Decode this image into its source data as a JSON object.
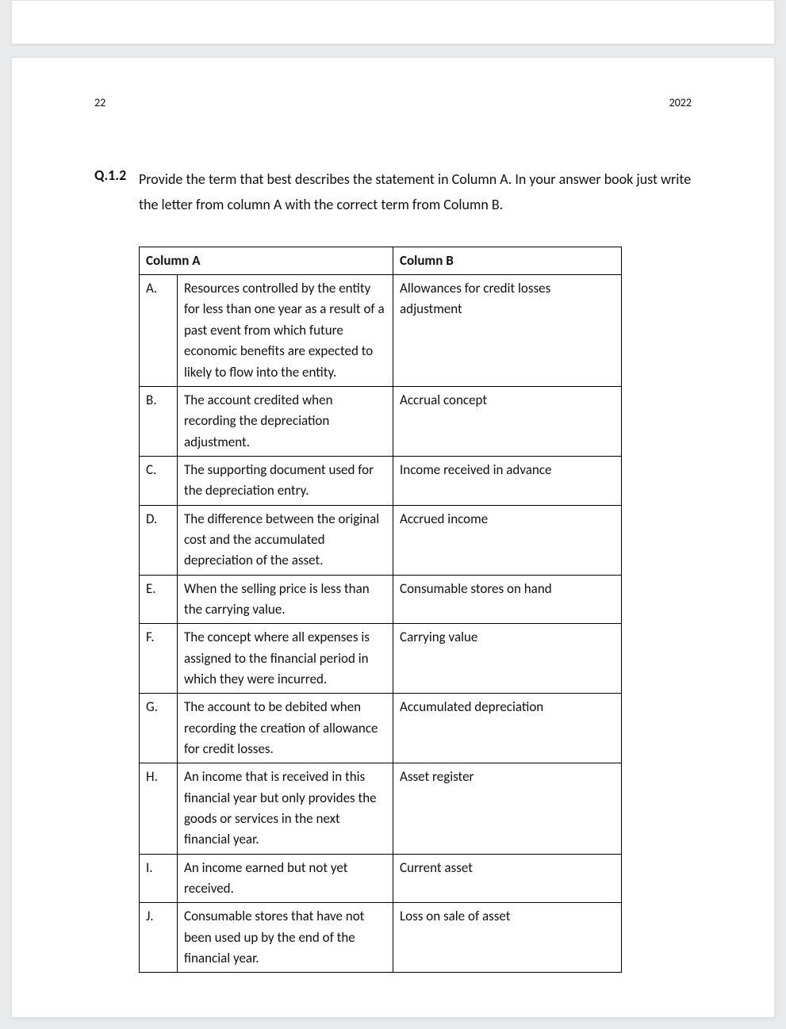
{
  "header": {
    "page_number": "22",
    "year": "2022"
  },
  "question": {
    "number": "Q.1.2",
    "text": "Provide the term that best describes the statement in Column A. In your answer book just write the letter from column A with the correct term from Column B."
  },
  "table": {
    "header_a": "Column A",
    "header_b": "Column B",
    "rows": [
      {
        "letter": "A.",
        "col_a": "Resources controlled by the entity for less than one year as a result of a past event from which future economic benefits are expected to likely to flow into the entity.",
        "col_b": "Allowances for credit losses adjustment"
      },
      {
        "letter": "B.",
        "col_a": "The account credited when recording the depreciation adjustment.",
        "col_b": "Accrual concept"
      },
      {
        "letter": "C.",
        "col_a": "The supporting document used for the depreciation entry.",
        "col_b": "Income received in advance"
      },
      {
        "letter": "D.",
        "col_a": "The difference between the original cost and the accumulated depreciation of the asset.",
        "col_b": "Accrued income"
      },
      {
        "letter": "E.",
        "col_a": "When the selling price is less than the carrying value.",
        "col_b": "Consumable stores on hand"
      },
      {
        "letter": "F.",
        "col_a": "The concept where all expenses is assigned to the financial period in which they were incurred.",
        "col_b": "Carrying value"
      },
      {
        "letter": "G.",
        "col_a": "The account to be debited when recording the creation of allowance for credit losses.",
        "col_b": "Accumulated depreciation"
      },
      {
        "letter": "H.",
        "col_a": "An income that is received in this financial year but only provides the goods or services in the next financial year.",
        "col_b": "Asset register"
      },
      {
        "letter": "I.",
        "col_a": "An income earned but not yet received.",
        "col_b": "Current asset"
      },
      {
        "letter": "J.",
        "col_a": "Consumable stores that have not been used up by the end of the financial year.",
        "col_b": "Loss on sale of asset"
      }
    ]
  },
  "style": {
    "page_bg": "#ffffff",
    "viewport_bg": "#e9eaec",
    "border_color": "#000000",
    "body_fontsize_pt": 12,
    "heading_weight": 700
  }
}
